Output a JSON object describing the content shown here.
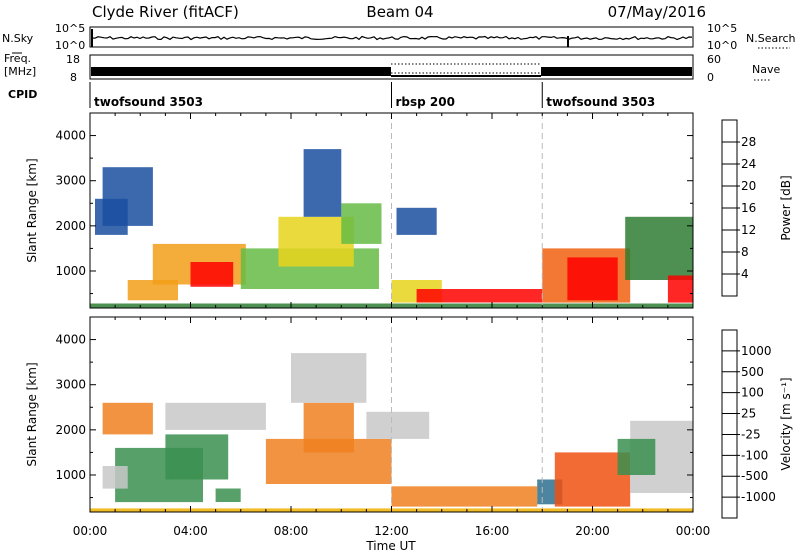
{
  "header": {
    "station": "Clyde River (fitACF)",
    "beam": "Beam 04",
    "date": "07/May/2016"
  },
  "status_panels": {
    "nsky_label": "N.Sky",
    "nsky_axis": [
      "10^5",
      "10^0"
    ],
    "nsearch_label": "N.Search",
    "nsearch_axis": [
      "10^5",
      "10^0"
    ],
    "freq_label_line1": "Freq.",
    "freq_label_line2": "[MHz]",
    "freq_axis": [
      "18",
      "8"
    ],
    "nave_label": "Nave",
    "nave_axis": [
      "60",
      "0"
    ],
    "cpid_label": "CPID",
    "cpid_segments": [
      {
        "name": "twofsound 3503",
        "start_hour": 0,
        "end_hour": 12
      },
      {
        "name": "rbsp 200",
        "start_hour": 12,
        "end_hour": 18
      },
      {
        "name": "twofsound 3503",
        "start_hour": 18,
        "end_hour": 24
      }
    ]
  },
  "chart_data": [
    {
      "type": "heatmap",
      "ylabel": "Slant Range [km]",
      "xlabel": "Time UT",
      "x_ticks": [
        "00:00",
        "04:00",
        "08:00",
        "12:00",
        "16:00",
        "20:00",
        "00:00"
      ],
      "y_ticks": [
        "1000",
        "2000",
        "3000",
        "4000"
      ],
      "ylim": [
        180,
        4500
      ],
      "xlim": [
        0,
        24
      ],
      "colorbar_label": "Power [dB]",
      "colorbar_ticks": [
        "28",
        "24",
        "20",
        "16",
        "12",
        "8",
        "4"
      ],
      "colors": [
        "#0000ff",
        "#1a4fa0",
        "#2e7d32",
        "#66bb44",
        "#e8d41c",
        "#f29d18",
        "#f06010",
        "#ff0000"
      ],
      "patches": [
        {
          "t0": 2.5,
          "t1": 6.2,
          "r0": 700,
          "r1": 1600,
          "level": 5
        },
        {
          "t0": 4.0,
          "t1": 5.7,
          "r0": 650,
          "r1": 1200,
          "level": 7
        },
        {
          "t0": 1.5,
          "t1": 3.5,
          "r0": 350,
          "r1": 800,
          "level": 5
        },
        {
          "t0": 6.0,
          "t1": 11.5,
          "r0": 600,
          "r1": 1500,
          "level": 3
        },
        {
          "t0": 7.5,
          "t1": 10.5,
          "r0": 1100,
          "r1": 2200,
          "level": 4
        },
        {
          "t0": 0.2,
          "t1": 1.5,
          "r0": 1800,
          "r1": 2600,
          "level": 1
        },
        {
          "t0": 0.5,
          "t1": 2.5,
          "r0": 2000,
          "r1": 3300,
          "level": 1
        },
        {
          "t0": 10.0,
          "t1": 11.6,
          "r0": 1600,
          "r1": 2500,
          "level": 3
        },
        {
          "t0": 8.5,
          "t1": 10.0,
          "r0": 2200,
          "r1": 3700,
          "level": 1
        },
        {
          "t0": 12.0,
          "t1": 14.0,
          "r0": 300,
          "r1": 800,
          "level": 4
        },
        {
          "t0": 13.0,
          "t1": 18.0,
          "r0": 300,
          "r1": 600,
          "level": 7
        },
        {
          "t0": 12.2,
          "t1": 13.8,
          "r0": 1800,
          "r1": 2400,
          "level": 1
        },
        {
          "t0": 18.0,
          "t1": 21.5,
          "r0": 300,
          "r1": 1500,
          "level": 6
        },
        {
          "t0": 19.0,
          "t1": 21.0,
          "r0": 350,
          "r1": 1300,
          "level": 7
        },
        {
          "t0": 21.3,
          "t1": 24.0,
          "r0": 800,
          "r1": 2200,
          "level": 2
        },
        {
          "t0": 23.0,
          "t1": 24.0,
          "r0": 300,
          "r1": 900,
          "level": 7
        },
        {
          "t0": 0.0,
          "t1": 24.0,
          "r0": 180,
          "r1": 280,
          "level": 2
        }
      ]
    },
    {
      "type": "heatmap",
      "ylabel": "Slant Range [km]",
      "xlabel": "Time UT",
      "x_ticks": [
        "00:00",
        "04:00",
        "08:00",
        "12:00",
        "16:00",
        "20:00",
        "00:00"
      ],
      "y_ticks": [
        "1000",
        "2000",
        "3000",
        "4000"
      ],
      "ylim": [
        180,
        4500
      ],
      "xlim": [
        0,
        24
      ],
      "colorbar_label": "Velocity [m s⁻¹]",
      "colorbar_ticks": [
        "1000",
        "500",
        "100",
        "25",
        "-25",
        "-100",
        "-500",
        "-1000"
      ],
      "colors": [
        "#ff0000",
        "#f05010",
        "#f08020",
        "#f0b000",
        "#c8c8c8",
        "#80c040",
        "#3a8f50",
        "#2e6e8e",
        "#1a40c0"
      ],
      "patches": [
        {
          "t0": 1.0,
          "t1": 4.5,
          "r0": 400,
          "r1": 1600,
          "level": 6
        },
        {
          "t0": 3.0,
          "t1": 5.5,
          "r0": 900,
          "r1": 1900,
          "level": 6
        },
        {
          "t0": 0.5,
          "t1": 2.5,
          "r0": 1900,
          "r1": 2600,
          "level": 2
        },
        {
          "t0": 5.0,
          "t1": 6.0,
          "r0": 400,
          "r1": 700,
          "level": 6
        },
        {
          "t0": 7.0,
          "t1": 12.0,
          "r0": 800,
          "r1": 1800,
          "level": 2
        },
        {
          "t0": 8.5,
          "t1": 10.5,
          "r0": 1500,
          "r1": 2600,
          "level": 2
        },
        {
          "t0": 3.0,
          "t1": 7.0,
          "r0": 2000,
          "r1": 2600,
          "level": 4
        },
        {
          "t0": 8.0,
          "t1": 11.0,
          "r0": 2600,
          "r1": 3700,
          "level": 4
        },
        {
          "t0": 0.5,
          "t1": 1.5,
          "r0": 700,
          "r1": 1200,
          "level": 4
        },
        {
          "t0": 12.0,
          "t1": 17.8,
          "r0": 300,
          "r1": 750,
          "level": 2
        },
        {
          "t0": 11.0,
          "t1": 13.5,
          "r0": 1800,
          "r1": 2400,
          "level": 4
        },
        {
          "t0": 17.8,
          "t1": 18.8,
          "r0": 350,
          "r1": 900,
          "level": 7
        },
        {
          "t0": 18.5,
          "t1": 21.5,
          "r0": 300,
          "r1": 1500,
          "level": 1
        },
        {
          "t0": 21.5,
          "t1": 24.0,
          "r0": 600,
          "r1": 2200,
          "level": 4
        },
        {
          "t0": 21.0,
          "t1": 22.5,
          "r0": 1000,
          "r1": 1800,
          "level": 6
        },
        {
          "t0": 0.0,
          "t1": 24.0,
          "r0": 180,
          "r1": 260,
          "level": 3
        }
      ]
    }
  ]
}
